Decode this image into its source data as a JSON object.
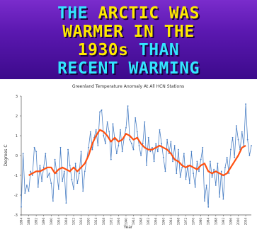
{
  "headline": {
    "lines": [
      [
        {
          "text": "THE ",
          "color": "cyan"
        },
        {
          "text": "ARCTIC WAS",
          "color": "yellow"
        }
      ],
      [
        {
          "text": "WARMER IN THE",
          "color": "yellow"
        }
      ],
      [
        {
          "text": "1930s ",
          "color": "yellow"
        },
        {
          "text": "THAN",
          "color": "cyan"
        }
      ],
      [
        {
          "text": "RECENT WARMING",
          "color": "cyan"
        }
      ]
    ],
    "colors": {
      "cyan": "#33e5ff",
      "yellow": "#ffea00",
      "background": "#5b18b0"
    }
  },
  "chart_data": {
    "type": "line",
    "title": "Greenland Temperature Anomaly At All HCN Stations",
    "xlabel": "Year",
    "ylabel": "Degrees C",
    "xlim": [
      1884,
      2007
    ],
    "ylim": [
      -3,
      3
    ],
    "yticks": [
      -3,
      -2,
      -1,
      0,
      1,
      2,
      3
    ],
    "xticks": [
      1884,
      1888,
      1892,
      1896,
      1900,
      1904,
      1908,
      1912,
      1916,
      1920,
      1924,
      1928,
      1932,
      1936,
      1940,
      1944,
      1948,
      1952,
      1956,
      1960,
      1964,
      1968,
      1972,
      1976,
      1980,
      1984,
      1988,
      1992,
      1996,
      2000,
      2004
    ],
    "grid": false,
    "series": [
      {
        "name": "",
        "color": "#4a7fc4",
        "x": [
          1884,
          1885,
          1886,
          1887,
          1888,
          1889,
          1890,
          1891,
          1892,
          1893,
          1894,
          1895,
          1896,
          1897,
          1898,
          1899,
          1900,
          1901,
          1902,
          1903,
          1904,
          1905,
          1906,
          1907,
          1908,
          1909,
          1910,
          1911,
          1912,
          1913,
          1914,
          1915,
          1916,
          1917,
          1918,
          1919,
          1920,
          1921,
          1922,
          1923,
          1924,
          1925,
          1926,
          1927,
          1928,
          1929,
          1930,
          1931,
          1932,
          1933,
          1934,
          1935,
          1936,
          1937,
          1938,
          1939,
          1940,
          1941,
          1942,
          1943,
          1944,
          1945,
          1946,
          1947,
          1948,
          1949,
          1950,
          1951,
          1952,
          1953,
          1954,
          1955,
          1956,
          1957,
          1958,
          1959,
          1960,
          1961,
          1962,
          1963,
          1964,
          1965,
          1966,
          1967,
          1968,
          1969,
          1970,
          1971,
          1972,
          1973,
          1974,
          1975,
          1976,
          1977,
          1978,
          1979,
          1980,
          1981,
          1982,
          1983,
          1984,
          1985,
          1986,
          1987,
          1988,
          1989,
          1990,
          1991,
          1992,
          1993,
          1994,
          1995,
          1996,
          1997,
          1998,
          1999,
          2000,
          2001,
          2002,
          2003,
          2004,
          2005,
          2006,
          2007
        ],
        "values": [
          -2.6,
          0.1,
          -1.9,
          -1.5,
          -1.8,
          -0.8,
          -1.0,
          0.4,
          0.2,
          -1.6,
          -0.5,
          -1.3,
          -0.6,
          0.1,
          -1.1,
          -0.9,
          -1.4,
          -2.3,
          -0.2,
          -0.9,
          -1.7,
          0.4,
          -1.3,
          -0.8,
          -2.4,
          0.3,
          -0.5,
          -1.2,
          -1.7,
          -0.4,
          -1.4,
          -0.9,
          0.2,
          -1.8,
          -0.8,
          -0.2,
          0.4,
          1.2,
          0.3,
          0.9,
          1.3,
          0.5,
          2.2,
          2.3,
          1.0,
          0.6,
          1.7,
          1.2,
          -0.2,
          1.6,
          0.8,
          0.1,
          0.5,
          1.3,
          0.2,
          0.9,
          1.4,
          2.5,
          0.8,
          0.6,
          0.3,
          1.9,
          1.2,
          0.5,
          0.0,
          0.6,
          1.7,
          -0.5,
          0.9,
          0.2,
          0.4,
          -0.3,
          0.6,
          0.2,
          1.3,
          0.6,
          -0.1,
          -0.8,
          0.8,
          0.1,
          0.7,
          -0.3,
          0.5,
          -0.9,
          0.3,
          -1.1,
          -0.6,
          0.1,
          -1.2,
          -0.5,
          -1.4,
          0.2,
          -0.9,
          -1.6,
          -0.3,
          -0.8,
          -0.2,
          0.4,
          -2.3,
          -1.5,
          -2.6,
          -0.3,
          -1.1,
          -0.7,
          -1.5,
          -0.4,
          -2.1,
          -0.8,
          -2.2,
          -0.6,
          -0.1,
          -0.9,
          0.3,
          0.9,
          -0.1,
          1.5,
          0.8,
          0.3,
          1.2,
          0.5,
          2.6,
          0.8,
          0.0,
          0.5
        ]
      },
      {
        "name": "",
        "color": "#ff5010",
        "x": [
          1888,
          1890,
          1892,
          1894,
          1896,
          1898,
          1900,
          1902,
          1904,
          1906,
          1908,
          1910,
          1912,
          1914,
          1916,
          1918,
          1920,
          1922,
          1924,
          1926,
          1928,
          1930,
          1932,
          1934,
          1936,
          1938,
          1940,
          1942,
          1944,
          1946,
          1948,
          1950,
          1952,
          1954,
          1956,
          1958,
          1960,
          1962,
          1964,
          1966,
          1968,
          1970,
          1972,
          1974,
          1976,
          1978,
          1980,
          1982,
          1984,
          1986,
          1988,
          1990,
          1992,
          1994,
          1996,
          1998,
          2000,
          2002,
          2004
        ],
        "values": [
          -1.0,
          -0.9,
          -0.8,
          -0.8,
          -0.7,
          -0.6,
          -0.6,
          -0.9,
          -0.7,
          -0.6,
          -0.7,
          -0.8,
          -0.6,
          -0.8,
          -0.6,
          -0.4,
          0.0,
          0.6,
          1.0,
          1.3,
          1.2,
          1.0,
          0.7,
          0.9,
          0.7,
          0.8,
          1.1,
          1.0,
          0.8,
          0.9,
          0.6,
          0.4,
          0.3,
          0.3,
          0.4,
          0.5,
          0.4,
          0.3,
          0.1,
          -0.2,
          -0.3,
          -0.5,
          -0.6,
          -0.5,
          -0.6,
          -0.7,
          -0.5,
          -0.4,
          -0.8,
          -0.9,
          -0.8,
          -0.9,
          -1.0,
          -0.9,
          -0.6,
          -0.3,
          0.0,
          0.4,
          0.5
        ]
      }
    ]
  }
}
